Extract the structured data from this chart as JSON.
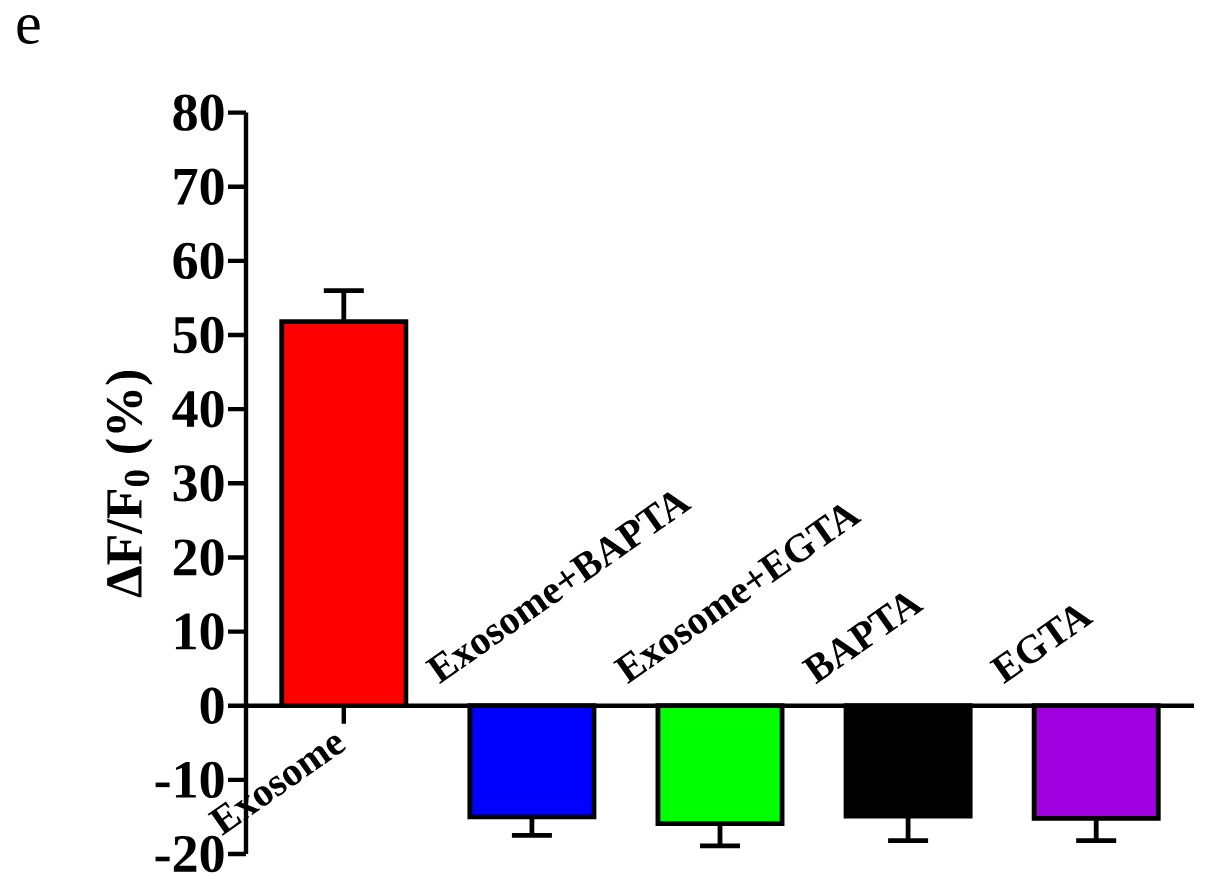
{
  "chart_data": {
    "type": "bar",
    "annotations": [
      "e"
    ],
    "ylabel": "ΔF/F$_{0}$ (%)",
    "categories": [
      "Exosome",
      "Exosome+BAPTA",
      "Exosome+EGTA",
      "BAPTA",
      "EGTA"
    ],
    "values": [
      51.8,
      -15.0,
      -15.9,
      -14.9,
      -15.2
    ],
    "errors": [
      4.2,
      2.5,
      3.0,
      3.3,
      3.0
    ],
    "colors": [
      "#ff0000",
      "#0000ff",
      "#00ff00",
      "#000000",
      "#a000e0"
    ],
    "ylim": [
      -20,
      80
    ],
    "yticks": [
      -20,
      -10,
      0,
      10,
      20,
      30,
      40,
      50,
      60,
      70,
      80
    ],
    "grid": false
  }
}
